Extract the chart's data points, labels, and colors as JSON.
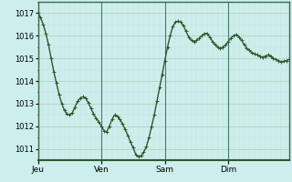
{
  "background_color": "#cceeed",
  "line_color": "#2d5a2d",
  "marker": "+",
  "marker_size": 3,
  "line_width": 1.0,
  "grid_color_major": "#aaccbb",
  "grid_color_minor": "#c8e0d8",
  "ylabel_fontsize": 6,
  "xlabel_fontsize": 6.5,
  "tick_labels": [
    "Jeu",
    "Ven",
    "Sam",
    "Dim"
  ],
  "ylim": [
    1010.5,
    1017.5
  ],
  "yticks": [
    1011,
    1012,
    1013,
    1014,
    1015,
    1016,
    1017
  ],
  "pressure_data": [
    1017.0,
    1016.8,
    1016.5,
    1016.1,
    1015.6,
    1015.0,
    1014.4,
    1013.9,
    1013.4,
    1013.0,
    1012.7,
    1012.55,
    1012.5,
    1012.6,
    1012.85,
    1013.1,
    1013.25,
    1013.3,
    1013.25,
    1013.05,
    1012.8,
    1012.55,
    1012.35,
    1012.2,
    1012.0,
    1011.8,
    1011.75,
    1012.0,
    1012.3,
    1012.5,
    1012.45,
    1012.3,
    1012.1,
    1011.85,
    1011.6,
    1011.3,
    1011.05,
    1010.75,
    1010.65,
    1010.7,
    1010.85,
    1011.1,
    1011.5,
    1012.0,
    1012.5,
    1013.1,
    1013.7,
    1014.3,
    1014.9,
    1015.5,
    1016.0,
    1016.4,
    1016.6,
    1016.65,
    1016.6,
    1016.45,
    1016.2,
    1015.95,
    1015.8,
    1015.75,
    1015.8,
    1015.9,
    1016.0,
    1016.1,
    1016.1,
    1015.95,
    1015.75,
    1015.6,
    1015.5,
    1015.45,
    1015.5,
    1015.6,
    1015.75,
    1015.9,
    1016.0,
    1016.05,
    1015.95,
    1015.8,
    1015.6,
    1015.45,
    1015.35,
    1015.25,
    1015.2,
    1015.15,
    1015.1,
    1015.05,
    1015.1,
    1015.15,
    1015.1,
    1015.0,
    1014.95,
    1014.9,
    1014.85,
    1014.87,
    1014.9,
    1014.95
  ],
  "day_positions": [
    0,
    24,
    48,
    72
  ],
  "spine_color": "#2d5a2d",
  "bottom_bar_color": "#2d5a2d"
}
